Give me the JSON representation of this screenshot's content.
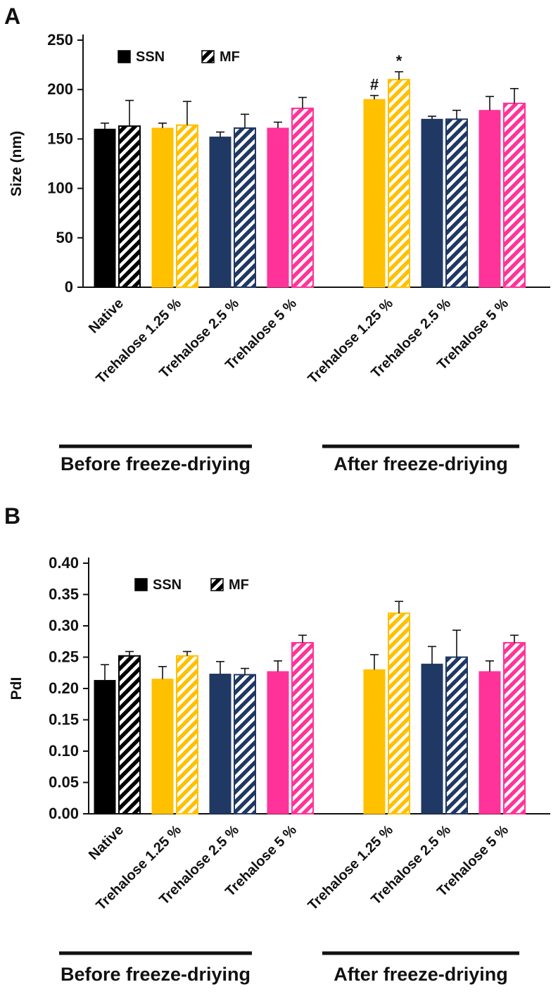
{
  "chart_data": [
    {
      "type": "bar",
      "label": "A",
      "ylabel": "Size (nm)",
      "ymin": 0,
      "ymax": 250,
      "ystep": 50,
      "decimals": 0,
      "grid": false,
      "legend_position": "top-inside",
      "legend": [
        {
          "name": "SSN",
          "fill": "solid",
          "color": "#000000"
        },
        {
          "name": "MF",
          "fill": "hatch",
          "color": "#000000"
        }
      ],
      "sections": [
        {
          "title": "Before freeze-driying",
          "groups": [
            {
              "label": "Native",
              "color": "#000000",
              "bars": [
                {
                  "series": "SSN",
                  "value": 160,
                  "err": 6
                },
                {
                  "series": "MF",
                  "value": 163,
                  "err": 26,
                  "hatch": true
                }
              ]
            },
            {
              "label": "Trehalose 1.25 %",
              "color": "#FFC000",
              "bars": [
                {
                  "series": "SSN",
                  "value": 161,
                  "err": 5
                },
                {
                  "series": "MF",
                  "value": 164,
                  "err": 24,
                  "hatch": true
                }
              ]
            },
            {
              "label": "Trehalose 2.5 %",
              "color": "#1F3864",
              "bars": [
                {
                  "series": "SSN",
                  "value": 152,
                  "err": 5
                },
                {
                  "series": "MF",
                  "value": 161,
                  "err": 14,
                  "hatch": true
                }
              ]
            },
            {
              "label": "Trehalose 5 %",
              "color": "#FF3399",
              "bars": [
                {
                  "series": "SSN",
                  "value": 161,
                  "err": 6
                },
                {
                  "series": "MF",
                  "value": 181,
                  "err": 11,
                  "hatch": true
                }
              ]
            }
          ]
        },
        {
          "title": "After freeze-driying",
          "groups": [
            {
              "label": "Trehalose 1.25 %",
              "color": "#FFC000",
              "bars": [
                {
                  "series": "SSN",
                  "value": 190,
                  "err": 4,
                  "note": "#"
                },
                {
                  "series": "MF",
                  "value": 210,
                  "err": 8,
                  "hatch": true,
                  "note": "*"
                }
              ]
            },
            {
              "label": "Trehalose 2.5 %",
              "color": "#1F3864",
              "bars": [
                {
                  "series": "SSN",
                  "value": 170,
                  "err": 3
                },
                {
                  "series": "MF",
                  "value": 170,
                  "err": 9,
                  "hatch": true
                }
              ]
            },
            {
              "label": "Trehalose 5 %",
              "color": "#FF3399",
              "bars": [
                {
                  "series": "SSN",
                  "value": 179,
                  "err": 14
                },
                {
                  "series": "MF",
                  "value": 186,
                  "err": 15,
                  "hatch": true
                }
              ]
            }
          ]
        }
      ]
    },
    {
      "type": "bar",
      "label": "B",
      "ylabel": "PdI",
      "ymin": 0,
      "ymax": 0.4,
      "ystep": 0.05,
      "decimals": 2,
      "grid": false,
      "legend_position": "top-inside",
      "legend": [
        {
          "name": "SSN",
          "fill": "solid",
          "color": "#000000"
        },
        {
          "name": "MF",
          "fill": "hatch",
          "color": "#000000"
        }
      ],
      "sections": [
        {
          "title": "Before freeze-driying",
          "groups": [
            {
              "label": "Native",
              "color": "#000000",
              "bars": [
                {
                  "series": "SSN",
                  "value": 0.213,
                  "err": 0.025
                },
                {
                  "series": "MF",
                  "value": 0.252,
                  "err": 0.007,
                  "hatch": true
                }
              ]
            },
            {
              "label": "Trehalose 1.25 %",
              "color": "#FFC000",
              "bars": [
                {
                  "series": "SSN",
                  "value": 0.215,
                  "err": 0.02
                },
                {
                  "series": "MF",
                  "value": 0.252,
                  "err": 0.007,
                  "hatch": true
                }
              ]
            },
            {
              "label": "Trehalose 2.5 %",
              "color": "#1F3864",
              "bars": [
                {
                  "series": "SSN",
                  "value": 0.223,
                  "err": 0.02
                },
                {
                  "series": "MF",
                  "value": 0.222,
                  "err": 0.01,
                  "hatch": true
                }
              ]
            },
            {
              "label": "Trehalose 5 %",
              "color": "#FF3399",
              "bars": [
                {
                  "series": "SSN",
                  "value": 0.227,
                  "err": 0.017
                },
                {
                  "series": "MF",
                  "value": 0.273,
                  "err": 0.012,
                  "hatch": true
                }
              ]
            }
          ]
        },
        {
          "title": "After freeze-driying",
          "groups": [
            {
              "label": "Trehalose 1.25 %",
              "color": "#FFC000",
              "bars": [
                {
                  "series": "SSN",
                  "value": 0.23,
                  "err": 0.024
                },
                {
                  "series": "MF",
                  "value": 0.32,
                  "err": 0.019,
                  "hatch": true
                }
              ]
            },
            {
              "label": "Trehalose 2.5 %",
              "color": "#1F3864",
              "bars": [
                {
                  "series": "SSN",
                  "value": 0.239,
                  "err": 0.028
                },
                {
                  "series": "MF",
                  "value": 0.25,
                  "err": 0.043,
                  "hatch": true
                }
              ]
            },
            {
              "label": "Trehalose 5 %",
              "color": "#FF3399",
              "bars": [
                {
                  "series": "SSN",
                  "value": 0.227,
                  "err": 0.017
                },
                {
                  "series": "MF",
                  "value": 0.273,
                  "err": 0.012,
                  "hatch": true
                }
              ]
            }
          ]
        }
      ]
    }
  ]
}
